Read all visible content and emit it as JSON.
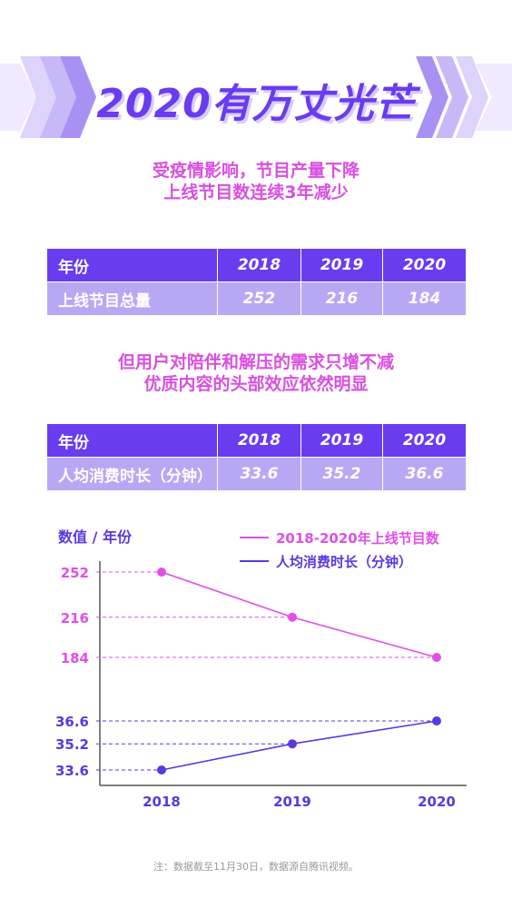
{
  "header": {
    "title": "2020有万丈光芒"
  },
  "section1": {
    "line1": "受疫情影响，节目产量下降",
    "line2": "上线节目数连续3年减少"
  },
  "table1": {
    "header": [
      "年份",
      "2018",
      "2019",
      "2020"
    ],
    "row": [
      "上线节目总量",
      "252",
      "216",
      "184"
    ]
  },
  "section2": {
    "line1": "但用户对陪伴和解压的需求只增不减",
    "line2": "优质内容的头部效应依然明显"
  },
  "table2": {
    "header": [
      "年份",
      "2018",
      "2019",
      "2020"
    ],
    "row": [
      "人均消费时长（分钟）",
      "33.6",
      "35.2",
      "36.6"
    ]
  },
  "chart_data": {
    "type": "line",
    "ylabel": "数值 / 年份",
    "categories": [
      "2018",
      "2019",
      "2020"
    ],
    "series": [
      {
        "name": "2018-2020年上线节目数",
        "values": [
          252,
          216,
          184
        ],
        "color": "#e04fe8"
      },
      {
        "name": "人均消费时长（分钟）",
        "values": [
          33.6,
          35.2,
          36.6
        ],
        "color": "#5a38e0"
      }
    ]
  },
  "note": "注：数据截至11月30日，数据源自腾讯视频。"
}
